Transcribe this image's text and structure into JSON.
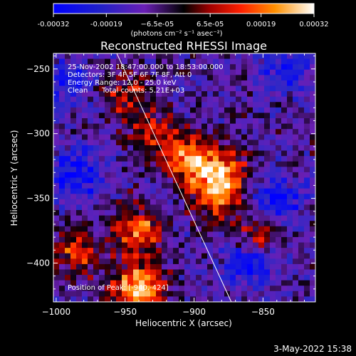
{
  "chart_data": {
    "type": "heatmap",
    "title": "Reconstructed RHESSI Image",
    "xlabel": "Heliocentric X (arcsec)",
    "ylabel": "Heliocentric Y (arcsec)",
    "xlim": [
      -1002,
      -812
    ],
    "ylim": [
      -430,
      -238
    ],
    "xticks": [
      -1000,
      -950,
      -900,
      -850
    ],
    "xtick_labels": [
      "−1000",
      "−950",
      "−900",
      "−850"
    ],
    "yticks": [
      -250,
      -300,
      -350,
      -400
    ],
    "ytick_labels": [
      "−250",
      "−300",
      "−350",
      "−400"
    ],
    "colorbar": {
      "range": [
        -0.00032,
        0.00032
      ],
      "ticks": [
        -0.00032,
        -0.00019,
        -6.5e-05,
        6.5e-05,
        0.00019,
        0.00032
      ],
      "tick_labels": [
        "-0.00032",
        "-0.00019",
        "−6.5e-05",
        "6.5e-05",
        "0.00019",
        "0.00032"
      ],
      "unit_label": "(photons cm⁻² s⁻¹ asec⁻²)"
    },
    "annotations": {
      "time": "25-Nov-2002 18:47:00.000 to 18:53:00.000",
      "detectors": "Detectors: 3F 4F 5F 6F 7F 8F, Att 0",
      "energy": "Energy Range: 12.0 - 25.0 keV",
      "clean": "Clean",
      "counts": "Total counts: 5.21E+03",
      "peak": "Position of Peak: [-940,-424]"
    },
    "limb_line": [
      [
        -956,
        -238
      ],
      [
        -873,
        -430
      ]
    ],
    "hot_spots": [
      {
        "x": -905,
        "y": -320,
        "intensity": 0.75
      },
      {
        "x": -880,
        "y": -330,
        "intensity": 0.8
      },
      {
        "x": -940,
        "y": -375,
        "intensity": 0.7
      },
      {
        "x": -940,
        "y": -420,
        "intensity": 1.0
      },
      {
        "x": -930,
        "y": -300,
        "intensity": 0.45
      },
      {
        "x": -985,
        "y": -390,
        "intensity": 0.6
      },
      {
        "x": -950,
        "y": -270,
        "intensity": 0.45
      },
      {
        "x": -855,
        "y": -380,
        "intensity": 0.5
      },
      {
        "x": -885,
        "y": -350,
        "intensity": 0.55
      }
    ],
    "cold_spots": [
      {
        "x": -985,
        "y": -330,
        "intensity": -0.55
      },
      {
        "x": -860,
        "y": -400,
        "intensity": -0.6
      },
      {
        "x": -830,
        "y": -250,
        "intensity": -0.45
      },
      {
        "x": -840,
        "y": -350,
        "intensity": -0.5
      },
      {
        "x": -990,
        "y": -260,
        "intensity": -0.4
      }
    ]
  },
  "footer_timestamp": "3-May-2022 15:38"
}
